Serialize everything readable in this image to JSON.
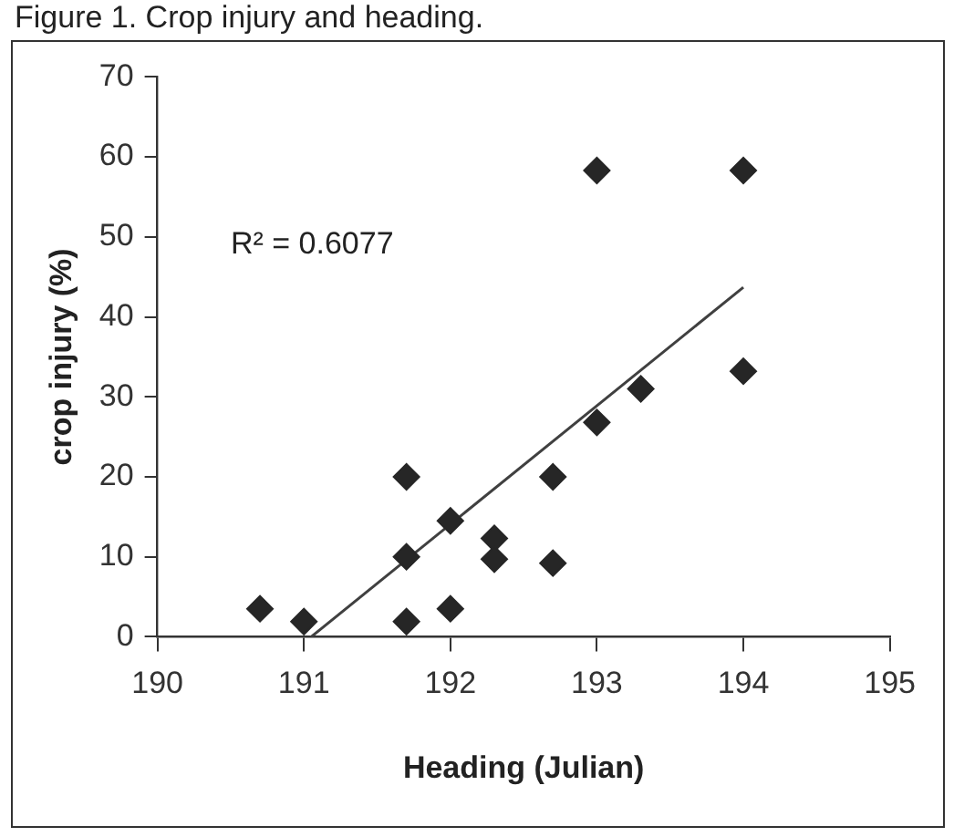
{
  "chart_data": {
    "type": "scatter",
    "title": "Figure 1. Crop injury and heading.",
    "xlabel": "Heading (Julian)",
    "ylabel": "crop injury (%)",
    "xlim": [
      190,
      195
    ],
    "xticks": [
      190,
      191,
      192,
      193,
      194,
      195
    ],
    "ylim": [
      0,
      70
    ],
    "yticks": [
      0,
      10,
      20,
      30,
      40,
      50,
      60,
      70
    ],
    "marker": "diamond",
    "annotations": [
      "R² = 0.6077"
    ],
    "series": [
      {
        "color": "#262626",
        "x": [
          190.7,
          191.0,
          191.7,
          191.7,
          191.7,
          192.0,
          192.0,
          192.3,
          192.3,
          192.7,
          192.7,
          193.0,
          193.0,
          193.3,
          194.0,
          194.0
        ],
        "values": [
          3.5,
          1.9,
          1.9,
          10,
          20,
          14.5,
          3.5,
          12.3,
          9.7,
          20,
          9.2,
          26.8,
          58.3,
          31,
          58.3,
          33.2
        ]
      },
      {
        "type": "line",
        "color": "#404040",
        "marker": "none",
        "x": [
          191.05,
          194.0
        ],
        "values": [
          0,
          43.7
        ]
      }
    ]
  }
}
